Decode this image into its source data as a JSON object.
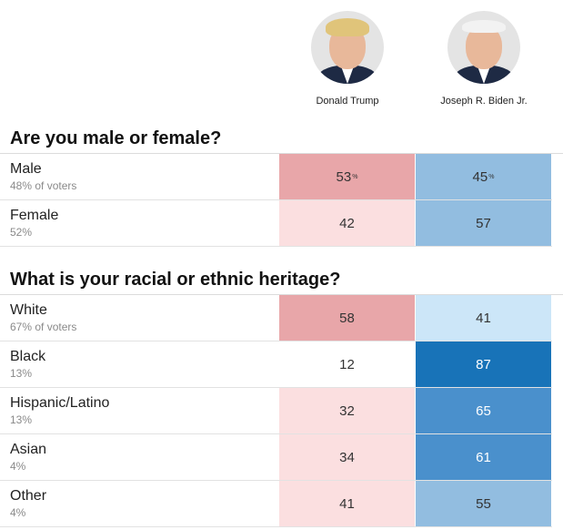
{
  "candidates": [
    {
      "name": "Donald Trump"
    },
    {
      "name": "Joseph R. Biden Jr."
    }
  ],
  "colors": {
    "trump_strong": "#e8a6a9",
    "trump_light": "#fbdfe0",
    "biden_darkest": "#1873b8",
    "biden_dark": "#4a90cc",
    "biden_mid": "#92bde0",
    "biden_light": "#cce6f8",
    "white": "#ffffff",
    "text_dark": "#ffffff",
    "text_normal": "#333333"
  },
  "chart_data": [
    {
      "type": "table",
      "title": "Are you male or female?",
      "columns": [
        "Donald Trump",
        "Joseph R. Biden Jr."
      ],
      "percent_sign": "%",
      "rows": [
        {
          "label": "Male",
          "share": "48% of voters",
          "trump": 53,
          "biden": 45
        },
        {
          "label": "Female",
          "share": "52%",
          "trump": 42,
          "biden": 57
        }
      ]
    },
    {
      "type": "table",
      "title": "What is your racial or ethnic heritage?",
      "columns": [
        "Donald Trump",
        "Joseph R. Biden Jr."
      ],
      "rows": [
        {
          "label": "White",
          "share": "67% of voters",
          "trump": 58,
          "biden": 41
        },
        {
          "label": "Black",
          "share": "13%",
          "trump": 12,
          "biden": 87
        },
        {
          "label": "Hispanic/Latino",
          "share": "13%",
          "trump": 32,
          "biden": 65
        },
        {
          "label": "Asian",
          "share": "4%",
          "trump": 34,
          "biden": 61
        },
        {
          "label": "Other",
          "share": "4%",
          "trump": 41,
          "biden": 55
        }
      ]
    }
  ]
}
